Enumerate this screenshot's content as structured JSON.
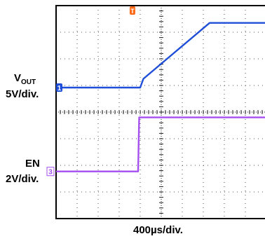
{
  "chart_data": {
    "type": "line",
    "xlabel": "400µs/div.",
    "x_divisions": 10,
    "y_divisions": 8,
    "grid": true,
    "channels": [
      {
        "label_main": "V",
        "label_sub": "OUT",
        "scale": "5V/div.",
        "marker": "1",
        "color": "#1f4fd8",
        "points": [
          [
            0,
            4.92
          ],
          [
            4.0,
            4.92
          ],
          [
            4.15,
            5.25
          ],
          [
            7.3,
            7.35
          ],
          [
            10,
            7.35
          ]
        ]
      },
      {
        "label_main": "EN",
        "label_sub": "",
        "scale": "2V/div.",
        "marker": "3",
        "color": "#a64ff0",
        "points": [
          [
            0,
            1.77
          ],
          [
            3.9,
            1.77
          ],
          [
            3.95,
            3.8
          ],
          [
            10,
            3.8
          ]
        ]
      }
    ],
    "trigger_marker": {
      "label": "T",
      "color": "#ff6a1a"
    }
  }
}
